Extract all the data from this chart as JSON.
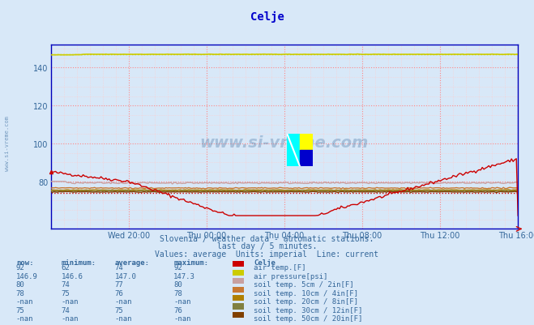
{
  "title": "Celje",
  "background_color": "#d8e8f8",
  "plot_bg_color": "#d8e8f8",
  "y_min": 55,
  "y_max": 152,
  "y_ticks": [
    80,
    100,
    120,
    140
  ],
  "x_tick_labels": [
    "Wed 20:00",
    "Thu 00:00",
    "Thu 04:00",
    "Thu 08:00",
    "Thu 12:00",
    "Thu 16:00"
  ],
  "x_tick_positions": [
    48,
    96,
    144,
    192,
    240,
    288
  ],
  "grid_color_major": "#ff8888",
  "grid_color_minor": "#ffcccc",
  "subtitle1": "Slovenia / weather data - automatic stations.",
  "subtitle2": "last day / 5 minutes.",
  "subtitle3": "Values: average  Units: imperial  Line: current",
  "watermark": "www.si-vreme.com",
  "avg_air_temp": 74,
  "avg_air_pressure": 147.0,
  "legend_rows": [
    {
      "now": "92",
      "min": "62",
      "avg": "74",
      "max": "92",
      "color": "#cc0000",
      "label": "air temp.[F]"
    },
    {
      "now": "146.9",
      "min": "146.6",
      "avg": "147.0",
      "max": "147.3",
      "color": "#cccc00",
      "label": "air pressure[psi]"
    },
    {
      "now": "80",
      "min": "74",
      "avg": "77",
      "max": "80",
      "color": "#c8a0a0",
      "label": "soil temp. 5cm / 2in[F]"
    },
    {
      "now": "78",
      "min": "75",
      "avg": "76",
      "max": "78",
      "color": "#c87832",
      "label": "soil temp. 10cm / 4in[F]"
    },
    {
      "now": "-nan",
      "min": "-nan",
      "avg": "-nan",
      "max": "-nan",
      "color": "#b08000",
      "label": "soil temp. 20cm / 8in[F]"
    },
    {
      "now": "75",
      "min": "74",
      "avg": "75",
      "max": "76",
      "color": "#808040",
      "label": "soil temp. 30cm / 12in[F]"
    },
    {
      "now": "-nan",
      "min": "-nan",
      "avg": "-nan",
      "max": "-nan",
      "color": "#804000",
      "label": "soil temp. 50cm / 20in[F]"
    }
  ],
  "col_headers": [
    "now:",
    "minimum:",
    "average:",
    "maximum:",
    "",
    "Celje"
  ]
}
